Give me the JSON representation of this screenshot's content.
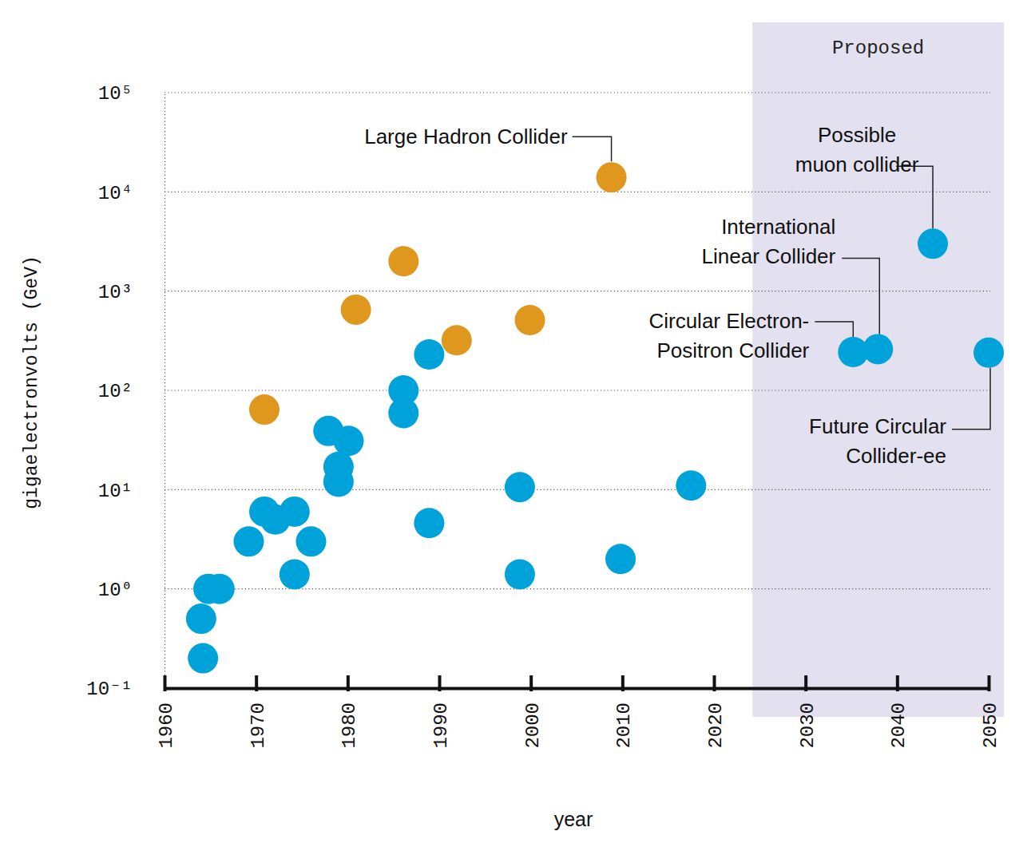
{
  "chart_data": {
    "type": "scatter",
    "log": "y",
    "grid": true,
    "xlabel": "year",
    "ylabel": "gigaelectronvolts (GeV)",
    "xlim": [
      1960,
      2050
    ],
    "ylim": [
      0.1,
      100000
    ],
    "xticks": [
      1960,
      1970,
      1980,
      1990,
      2000,
      2010,
      2020,
      2030,
      2040,
      2050
    ],
    "yticks": [
      {
        "value": 0.1,
        "label": "10⁻¹"
      },
      {
        "value": 1,
        "label": "10⁰"
      },
      {
        "value": 10,
        "label": "10¹"
      },
      {
        "value": 100,
        "label": "10²"
      },
      {
        "value": 1000,
        "label": "10³"
      },
      {
        "value": 10000,
        "label": "10⁴"
      },
      {
        "value": 100000,
        "label": "10⁵"
      }
    ],
    "shaded_region": {
      "label": "Proposed",
      "from": 2024.2
    },
    "series": [
      {
        "color": "#00a3d9",
        "marker": "circle",
        "x": [
          1964.2,
          1964,
          1964.8,
          1966,
          1969.2,
          1970.9,
          1972.1,
          1974.2,
          1974.2,
          1976,
          1977.9,
          1980.1,
          1979,
          1979,
          1986.1,
          1986.1,
          1988.9,
          1988.9,
          1998.8,
          1998.8,
          2009.8,
          2017.5,
          2035.2,
          2037.9,
          2043.9,
          2050
        ],
        "values": [
          0.2,
          0.5,
          1,
          1,
          3,
          6,
          5,
          6,
          1.4,
          3,
          39,
          31,
          17,
          12,
          100,
          59,
          230,
          4.6,
          10.6,
          1.4,
          2,
          11,
          243,
          260,
          3000,
          240
        ],
        "labels": [
          null,
          null,
          null,
          null,
          null,
          null,
          null,
          null,
          null,
          null,
          null,
          null,
          null,
          null,
          null,
          null,
          null,
          null,
          null,
          null,
          null,
          null,
          "Circular Electron-\nPositron Collider",
          "International\nLinear Collider",
          "Possible\nmuon collider",
          "Future Circular\nCollider-ee"
        ]
      },
      {
        "color": "#e0971e",
        "marker": "circle",
        "x": [
          1970.9,
          1980.9,
          1986.1,
          1991.9,
          1999.9,
          2008.8
        ],
        "values": [
          64,
          650,
          2000,
          320,
          510,
          14000
        ],
        "labels": [
          null,
          null,
          null,
          null,
          null,
          "Large Hadron Collider"
        ]
      }
    ]
  }
}
